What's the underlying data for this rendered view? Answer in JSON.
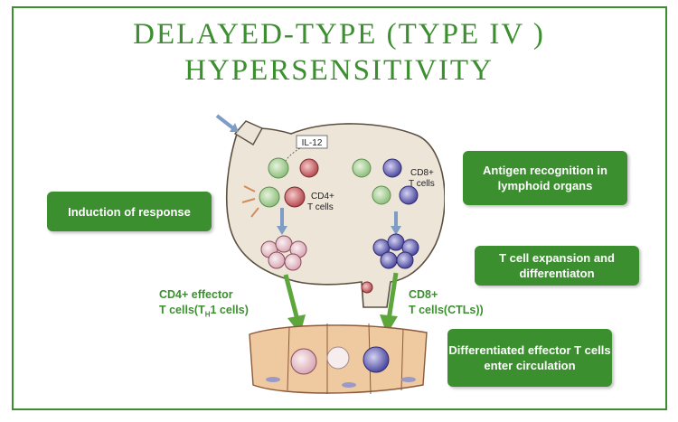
{
  "title": {
    "line1": "DELAYED-TYPE (TYPE IV )",
    "line2": "HYPERSENSITIVITY"
  },
  "colors": {
    "accent": "#3c8f2f",
    "background": "#ffffff",
    "lymph_node": "#ece5d8"
  },
  "diagram": {
    "il12_label": "IL-12",
    "cd4_label_line1": "CD4+",
    "cd4_label_line2": "T cells",
    "cd8_label_line1": "CD8+",
    "cd8_label_line2": "T cells"
  },
  "badges": {
    "induction": "Induction of response",
    "antigen_recognition": "Antigen recognition in lymphoid organs",
    "expansion": "T  cell expansion and differentiaton",
    "circulation": "Differentiated effector T cells enter circulation"
  },
  "labels": {
    "cd4_effector_line1": "CD4+ effector",
    "cd4_effector_line2": "T cells(T",
    "cd4_effector_sub": "H",
    "cd4_effector_line2b": "1 cells)",
    "cd8_effector_line1": "CD8+",
    "cd8_effector_line2": "T cells(CTLs))"
  }
}
